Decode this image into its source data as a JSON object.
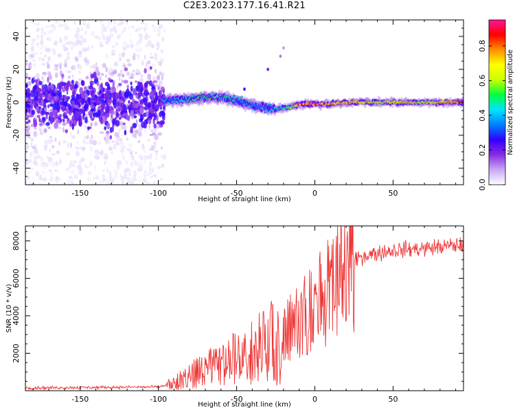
{
  "title": "C2E3.2023.177.16.41.R21",
  "chart_data": [
    {
      "type": "heatmap",
      "xlabel": "Height of straight line (km)",
      "ylabel": "Frequency (Hz)",
      "xlim": [
        -185,
        95
      ],
      "ylim": [
        -50,
        50
      ],
      "x_ticks": [
        -150,
        -100,
        -50,
        0,
        50
      ],
      "y_ticks": [
        -40,
        -20,
        0,
        20,
        40
      ],
      "colorbar": {
        "label": "Normalized spectral amplitude",
        "range": [
          0,
          0.95
        ],
        "ticks": [
          0.0,
          0.2,
          0.4,
          0.6,
          0.8
        ],
        "colors": [
          "#ffffff",
          "#c9a8f5",
          "#8a2be2",
          "#3000ff",
          "#0080ff",
          "#00e5ff",
          "#00ff40",
          "#c8ff00",
          "#ffff00",
          "#ff9000",
          "#ff0000",
          "#ff1493"
        ]
      },
      "ridge": {
        "x": [
          -185,
          -100,
          -96,
          -80,
          -70,
          -60,
          -50,
          -40,
          -35,
          -25,
          -15,
          -10,
          0,
          10,
          20,
          30,
          40,
          50,
          60,
          70,
          80,
          95
        ],
        "freq": [
          0,
          0,
          1,
          2,
          3,
          3,
          1,
          -2,
          -3,
          -4,
          -3,
          -1,
          -1,
          -1,
          0,
          0,
          0,
          0,
          0,
          0,
          0,
          0
        ],
        "peak_amplitude": [
          0.3,
          0.35,
          0.45,
          0.5,
          0.55,
          0.55,
          0.45,
          0.45,
          0.4,
          0.42,
          0.6,
          0.85,
          0.9,
          0.85,
          0.75,
          0.75,
          0.7,
          0.7,
          0.72,
          0.7,
          0.75,
          0.85
        ]
      }
    },
    {
      "type": "line",
      "xlabel": "Height of straight line (km)",
      "ylabel": "SNR (10 * v/v)",
      "xlim": [
        -185,
        95
      ],
      "ylim": [
        0,
        8800
      ],
      "x_ticks": [
        -150,
        -100,
        -50,
        0,
        50
      ],
      "y_ticks": [
        2000,
        4000,
        6000,
        8000
      ],
      "color": "#ee3333",
      "trend": {
        "x": [
          -185,
          -100,
          -90,
          -80,
          -60,
          -40,
          -20,
          -10,
          0,
          10,
          20,
          30,
          50,
          70,
          95
        ],
        "y": [
          150,
          200,
          400,
          800,
          1400,
          2000,
          3000,
          3800,
          4500,
          5400,
          6500,
          7200,
          7500,
          7600,
          7800
        ]
      }
    }
  ]
}
